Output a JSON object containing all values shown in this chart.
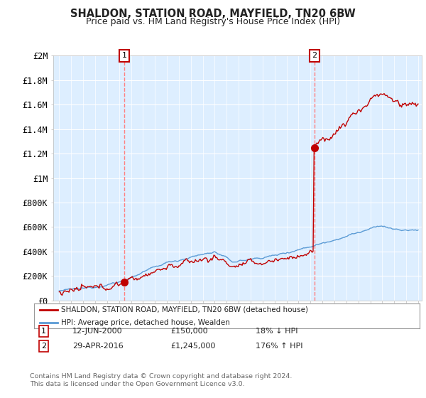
{
  "title": "SHALDON, STATION ROAD, MAYFIELD, TN20 6BW",
  "subtitle": "Price paid vs. HM Land Registry's House Price Index (HPI)",
  "ylim": [
    0,
    2000000
  ],
  "xlim_start": 1994.5,
  "xlim_end": 2025.3,
  "ytick_labels": [
    "£0",
    "£200K",
    "£400K",
    "£600K",
    "£800K",
    "£1M",
    "£1.2M",
    "£1.4M",
    "£1.6M",
    "£1.8M",
    "£2M"
  ],
  "ytick_values": [
    0,
    200000,
    400000,
    600000,
    800000,
    1000000,
    1200000,
    1400000,
    1600000,
    1800000,
    2000000
  ],
  "hpi_color": "#5b9bd5",
  "property_color": "#c00000",
  "vline_color": "#ff8080",
  "transaction1_year": 2000.45,
  "transaction1_price": 150000,
  "transaction2_year": 2016.33,
  "transaction2_price": 1245000,
  "legend_property": "SHALDON, STATION ROAD, MAYFIELD, TN20 6BW (detached house)",
  "legend_hpi": "HPI: Average price, detached house, Wealden",
  "table_row1_label": "1",
  "table_row1_date": "12-JUN-2000",
  "table_row1_price": "£150,000",
  "table_row1_hpi": "18% ↓ HPI",
  "table_row2_label": "2",
  "table_row2_date": "29-APR-2016",
  "table_row2_price": "£1,245,000",
  "table_row2_hpi": "176% ↑ HPI",
  "footer": "Contains HM Land Registry data © Crown copyright and database right 2024.\nThis data is licensed under the Open Government Licence v3.0.",
  "background_color": "#ffffff",
  "plot_bg_color": "#ddeeff",
  "grid_color": "#ffffff"
}
